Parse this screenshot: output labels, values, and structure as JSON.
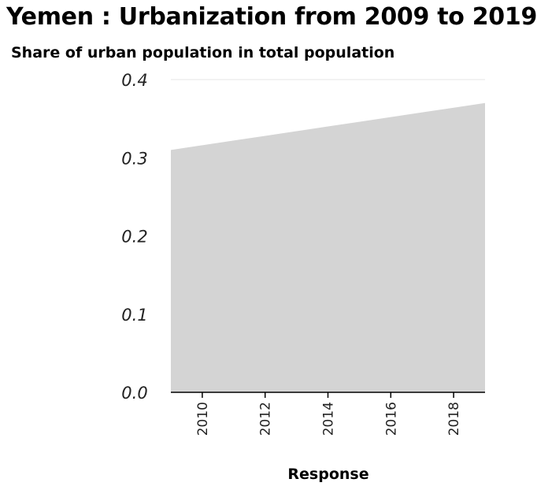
{
  "chart_data": {
    "type": "area",
    "title": "Yemen : Urbanization from 2009 to 2019",
    "ylabel": "Share of urban population in total population",
    "xlabel": "Response",
    "x": [
      2009,
      2010,
      2011,
      2012,
      2013,
      2014,
      2015,
      2016,
      2017,
      2018,
      2019
    ],
    "series": [
      {
        "values": [
          0.31,
          0.316,
          0.322,
          0.328,
          0.334,
          0.34,
          0.346,
          0.352,
          0.358,
          0.364,
          0.37
        ]
      }
    ],
    "xlim": [
      2009,
      2019
    ],
    "ylim": [
      0,
      0.4
    ],
    "yticks": [
      "0.0",
      "0.1",
      "0.2",
      "0.3",
      "0.4"
    ],
    "xticks": [
      "2010",
      "2012",
      "2014",
      "2016",
      "2018"
    ],
    "grid": true,
    "colors": {
      "fill": "#d4d4d4",
      "grid": "#e6e6e6",
      "axis": "#000000"
    }
  }
}
